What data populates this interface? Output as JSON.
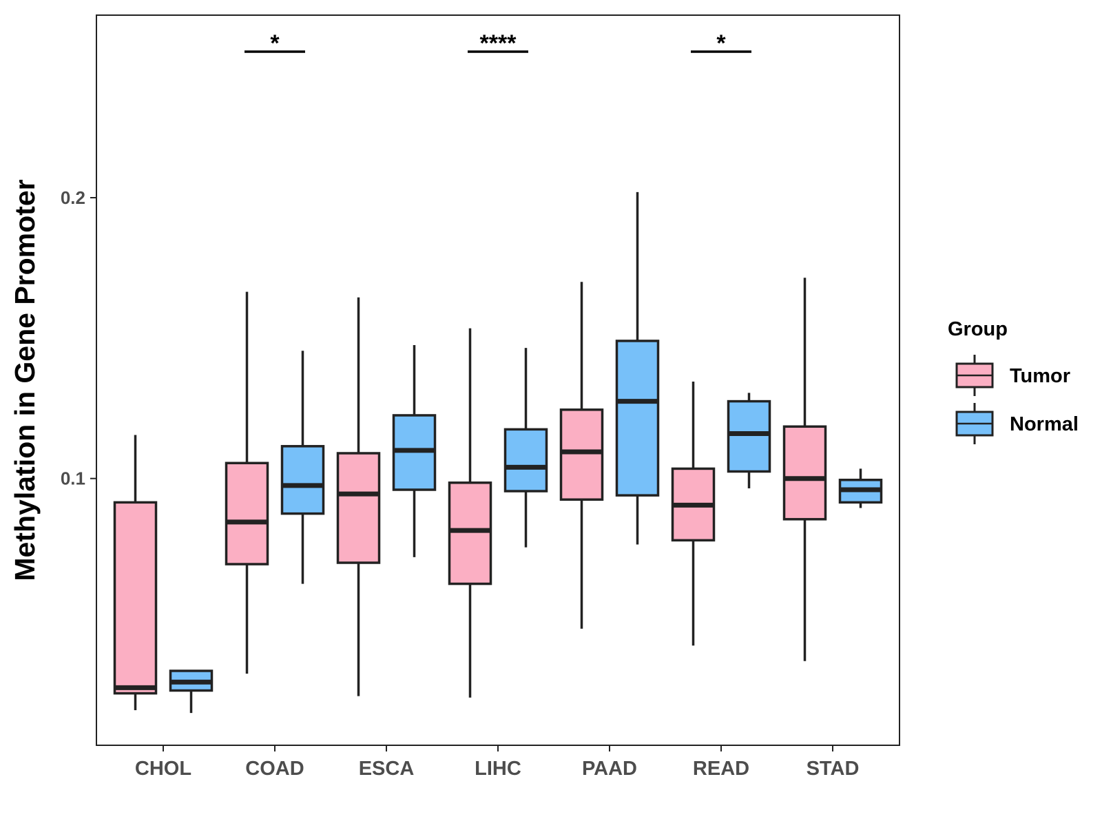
{
  "chart_data": {
    "type": "boxplot",
    "title": "",
    "xlabel": "",
    "ylabel": "Methylation in Gene Promoter",
    "ylim": [
      0.005,
      0.265
    ],
    "yticks": [
      {
        "value": 0.1,
        "label": "0.1"
      },
      {
        "value": 0.2,
        "label": "0.2"
      }
    ],
    "categories": [
      "CHOL",
      "COAD",
      "ESCA",
      "LIHC",
      "PAAD",
      "READ",
      "STAD"
    ],
    "legend": {
      "title": "Group",
      "position": "right",
      "entries": [
        {
          "name": "Tumor",
          "color": "#FBAFC3"
        },
        {
          "name": "Normal",
          "color": "#77C0F9"
        }
      ]
    },
    "series": [
      {
        "name": "Tumor",
        "color": "#FBAFC3",
        "boxes": [
          {
            "category": "CHOL",
            "whisker_low": 0.0175,
            "q1": 0.0235,
            "median": 0.0255,
            "q3": 0.0915,
            "whisker_high": 0.1155
          },
          {
            "category": "COAD",
            "whisker_low": 0.0305,
            "q1": 0.0695,
            "median": 0.0845,
            "q3": 0.1055,
            "whisker_high": 0.1665
          },
          {
            "category": "ESCA",
            "whisker_low": 0.0225,
            "q1": 0.07,
            "median": 0.0945,
            "q3": 0.109,
            "whisker_high": 0.1645
          },
          {
            "category": "LIHC",
            "whisker_low": 0.022,
            "q1": 0.0625,
            "median": 0.0815,
            "q3": 0.0985,
            "whisker_high": 0.1535
          },
          {
            "category": "PAAD",
            "whisker_low": 0.0465,
            "q1": 0.0925,
            "median": 0.1095,
            "q3": 0.1245,
            "whisker_high": 0.17
          },
          {
            "category": "READ",
            "whisker_low": 0.0405,
            "q1": 0.078,
            "median": 0.0905,
            "q3": 0.1035,
            "whisker_high": 0.1345
          },
          {
            "category": "STAD",
            "whisker_low": 0.035,
            "q1": 0.0855,
            "median": 0.1,
            "q3": 0.1185,
            "whisker_high": 0.1715
          }
        ]
      },
      {
        "name": "Normal",
        "color": "#77C0F9",
        "boxes": [
          {
            "category": "CHOL",
            "whisker_low": 0.0165,
            "q1": 0.0245,
            "median": 0.0275,
            "q3": 0.0315,
            "whisker_high": 0.0315
          },
          {
            "category": "COAD",
            "whisker_low": 0.0625,
            "q1": 0.0875,
            "median": 0.0975,
            "q3": 0.1115,
            "whisker_high": 0.1455
          },
          {
            "category": "ESCA",
            "whisker_low": 0.072,
            "q1": 0.096,
            "median": 0.11,
            "q3": 0.1225,
            "whisker_high": 0.1475
          },
          {
            "category": "LIHC",
            "whisker_low": 0.0755,
            "q1": 0.0955,
            "median": 0.104,
            "q3": 0.1175,
            "whisker_high": 0.1465
          },
          {
            "category": "PAAD",
            "whisker_low": 0.0765,
            "q1": 0.094,
            "median": 0.1275,
            "q3": 0.149,
            "whisker_high": 0.202
          },
          {
            "category": "READ",
            "whisker_low": 0.0965,
            "q1": 0.1025,
            "median": 0.116,
            "q3": 0.1275,
            "whisker_high": 0.1305
          },
          {
            "category": "STAD",
            "whisker_low": 0.0895,
            "q1": 0.0915,
            "median": 0.096,
            "q3": 0.0995,
            "whisker_high": 0.1035
          }
        ]
      }
    ],
    "annotations": [
      {
        "category": "COAD",
        "label": "*"
      },
      {
        "category": "LIHC",
        "label": "****"
      },
      {
        "category": "READ",
        "label": "*"
      }
    ]
  }
}
